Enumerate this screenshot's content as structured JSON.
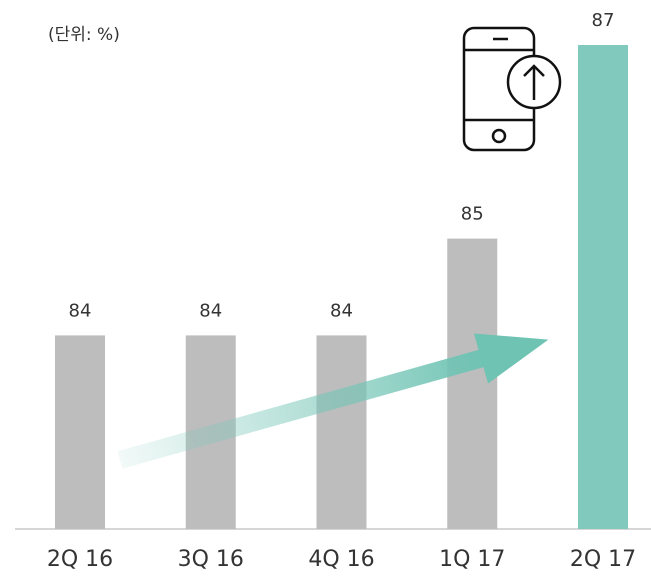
{
  "chart_data": {
    "type": "bar",
    "subtitle": "(단위: %)",
    "categories": [
      "2Q 16",
      "3Q 16",
      "4Q 16",
      "1Q 17",
      "2Q 17"
    ],
    "values": [
      84,
      84,
      84,
      85,
      87
    ],
    "colors": [
      "#bdbdbd",
      "#bdbdbd",
      "#bdbdbd",
      "#bdbdbd",
      "#80c9bc"
    ],
    "ylim": [
      82,
      87
    ]
  }
}
